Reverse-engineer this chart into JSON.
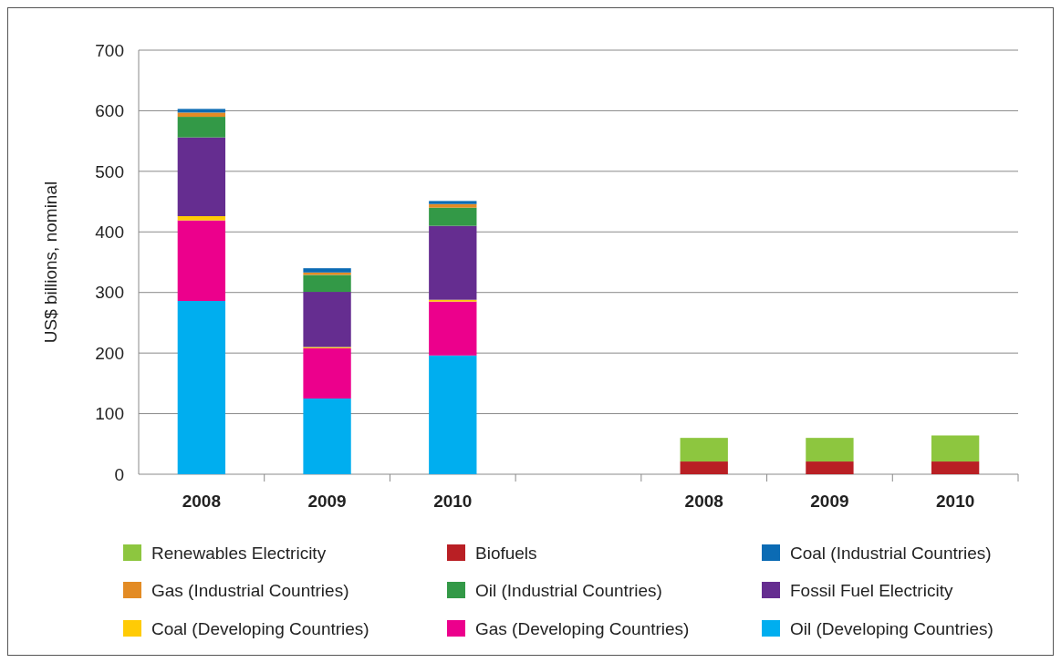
{
  "chart_data": {
    "type": "bar",
    "stacked": true,
    "ylabel": "US$ billions, nominal",
    "categories": [
      "2008",
      "2009",
      "2010",
      null,
      "2008",
      "2009",
      "2010"
    ],
    "series": [
      {
        "name": "Oil (Developing Countries)",
        "color": "#00aeef",
        "values": [
          286,
          125,
          196,
          null,
          null,
          null,
          null
        ]
      },
      {
        "name": "Gas (Developing Countries)",
        "color": "#ec008c",
        "values": [
          133,
          83,
          89,
          null,
          null,
          null,
          null
        ]
      },
      {
        "name": "Coal (Developing Countries)",
        "color": "#ffcb05",
        "values": [
          7,
          2,
          3,
          null,
          null,
          null,
          null
        ]
      },
      {
        "name": "Fossil Fuel Electricity",
        "color": "#652d90",
        "values": [
          130,
          91,
          122,
          null,
          null,
          null,
          null
        ]
      },
      {
        "name": "Oil (Industrial Countries)",
        "color": "#339947",
        "values": [
          34,
          28,
          30,
          null,
          null,
          null,
          null
        ]
      },
      {
        "name": "Gas (Industrial Countries)",
        "color": "#e38b24",
        "values": [
          7,
          4,
          6,
          null,
          null,
          null,
          null
        ]
      },
      {
        "name": "Coal (Industrial Countries)",
        "color": "#0b6bb4",
        "values": [
          6,
          7,
          5,
          null,
          null,
          null,
          null
        ]
      },
      {
        "name": "Biofuels",
        "color": "#b91f24",
        "values": [
          null,
          null,
          null,
          null,
          21,
          21,
          21
        ]
      },
      {
        "name": "Renewables Electricity",
        "color": "#8dc63f",
        "values": [
          null,
          null,
          null,
          null,
          39,
          39,
          43
        ]
      }
    ],
    "ylim": [
      0,
      700
    ],
    "yticks": [
      0,
      100,
      200,
      300,
      400,
      500,
      600,
      700
    ],
    "grid": "y",
    "legend": "bottom"
  }
}
